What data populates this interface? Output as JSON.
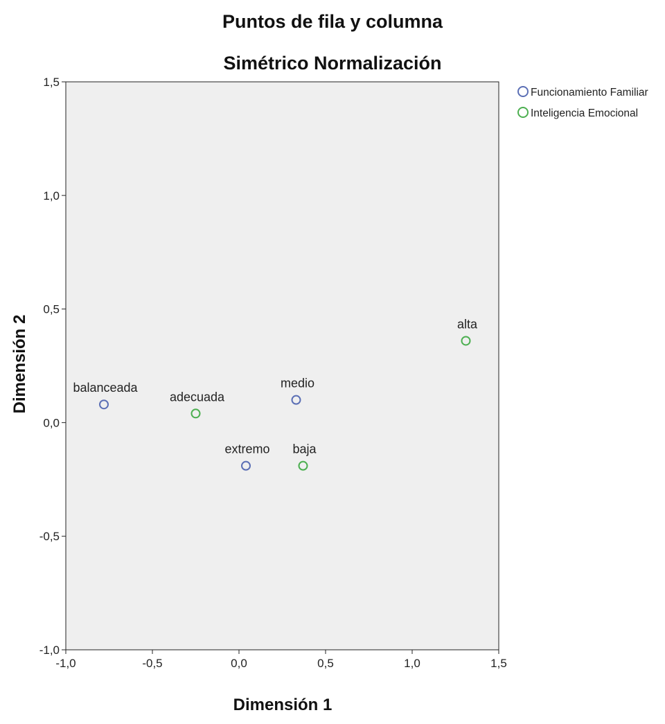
{
  "chart_data": {
    "type": "scatter",
    "title": "Puntos de fila y columna",
    "subtitle": "Simétrico Normalización",
    "xlabel": "Dimensión 1",
    "ylabel": "Dimensión 2",
    "xlim": [
      -1.0,
      1.5
    ],
    "ylim": [
      -1.0,
      1.5
    ],
    "x_ticks": [
      -1.0,
      -0.5,
      0.0,
      0.5,
      1.0,
      1.5
    ],
    "y_ticks": [
      -1.0,
      -0.5,
      0.0,
      0.5,
      1.0,
      1.5
    ],
    "x_tick_labels": [
      "-1,0",
      "-0,5",
      "0,0",
      "0,5",
      "1,0",
      "1,5"
    ],
    "y_tick_labels": [
      "-1,0",
      "-0,5",
      "0,0",
      "0,5",
      "1,0",
      "1,5"
    ],
    "grid": false,
    "legend_position": "top-right, outside plot",
    "plot_background": "#efefef",
    "series": [
      {
        "name": "Funcionamiento Familiar",
        "color": "#5b6fb5",
        "points": [
          {
            "label": "balanceada",
            "x": -0.78,
            "y": 0.08
          },
          {
            "label": "medio",
            "x": 0.33,
            "y": 0.1
          },
          {
            "label": "extremo",
            "x": 0.04,
            "y": -0.19
          }
        ]
      },
      {
        "name": "Inteligencia Emocional",
        "color": "#4caf50",
        "points": [
          {
            "label": "adecuada",
            "x": -0.25,
            "y": 0.04
          },
          {
            "label": "baja",
            "x": 0.37,
            "y": -0.19
          },
          {
            "label": "alta",
            "x": 1.31,
            "y": 0.36
          }
        ]
      }
    ]
  }
}
